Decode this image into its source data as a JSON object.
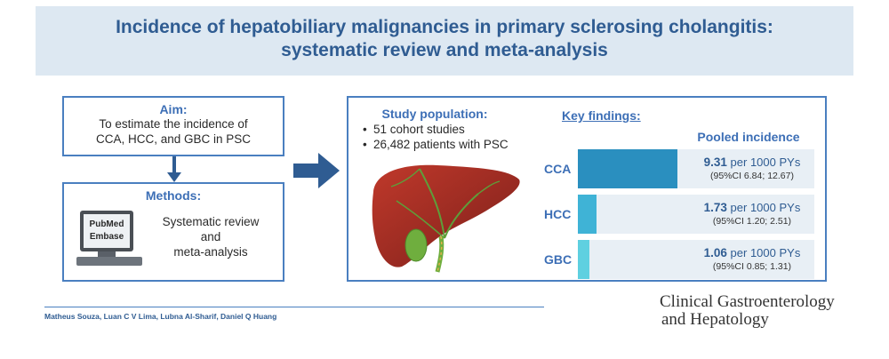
{
  "title": {
    "line1": "Incidence of hepatobiliary malignancies in primary sclerosing cholangitis:",
    "line2": "systematic review and meta-analysis"
  },
  "aim": {
    "heading": "Aim:",
    "lines": [
      "To estimate the incidence of",
      "CCA, HCC, and GBC in PSC"
    ]
  },
  "methods": {
    "heading": "Methods:",
    "screen_lines": [
      "PubMed",
      "Embase"
    ],
    "text_lines": [
      "Systematic review",
      "and",
      "meta-analysis"
    ]
  },
  "study_population": {
    "heading": "Study population:",
    "bullets": [
      "51 cohort studies",
      "26,482 patients with PSC"
    ]
  },
  "key_findings": {
    "heading": "Key findings:",
    "column_header": "Pooled incidence",
    "rows": [
      {
        "label": "CCA",
        "value": "9.31",
        "unit": " per 1000 PYs",
        "ci": "(95%CI 6.84; 12.67)",
        "color": "#2a8fbf"
      },
      {
        "label": "HCC",
        "value": "1.73",
        "unit": " per 1000 PYs",
        "ci": "(95%CI 1.20; 2.51)",
        "color": "#3fb3d6"
      },
      {
        "label": "GBC",
        "value": "1.06",
        "unit": " per 1000 PYs",
        "ci": "(95%CI 0.85; 1.31)",
        "color": "#5fd0e0"
      }
    ]
  },
  "authors": "Matheus Souza, Luan C V Lima, Lubna Al-Sharif, Daniel Q Huang",
  "journal": {
    "line1": "Clinical Gastroenterology",
    "line2": "and Hepatology"
  },
  "colors": {
    "accent": "#4a7fc0",
    "title": "#2f5c92",
    "band": "#dde8f2",
    "arrow": "#2f5c92"
  },
  "icons": {
    "arrow_down": "arrow-down-icon",
    "arrow_right": "arrow-right-icon",
    "computer": "computer-icon",
    "liver": "liver-illustration"
  }
}
